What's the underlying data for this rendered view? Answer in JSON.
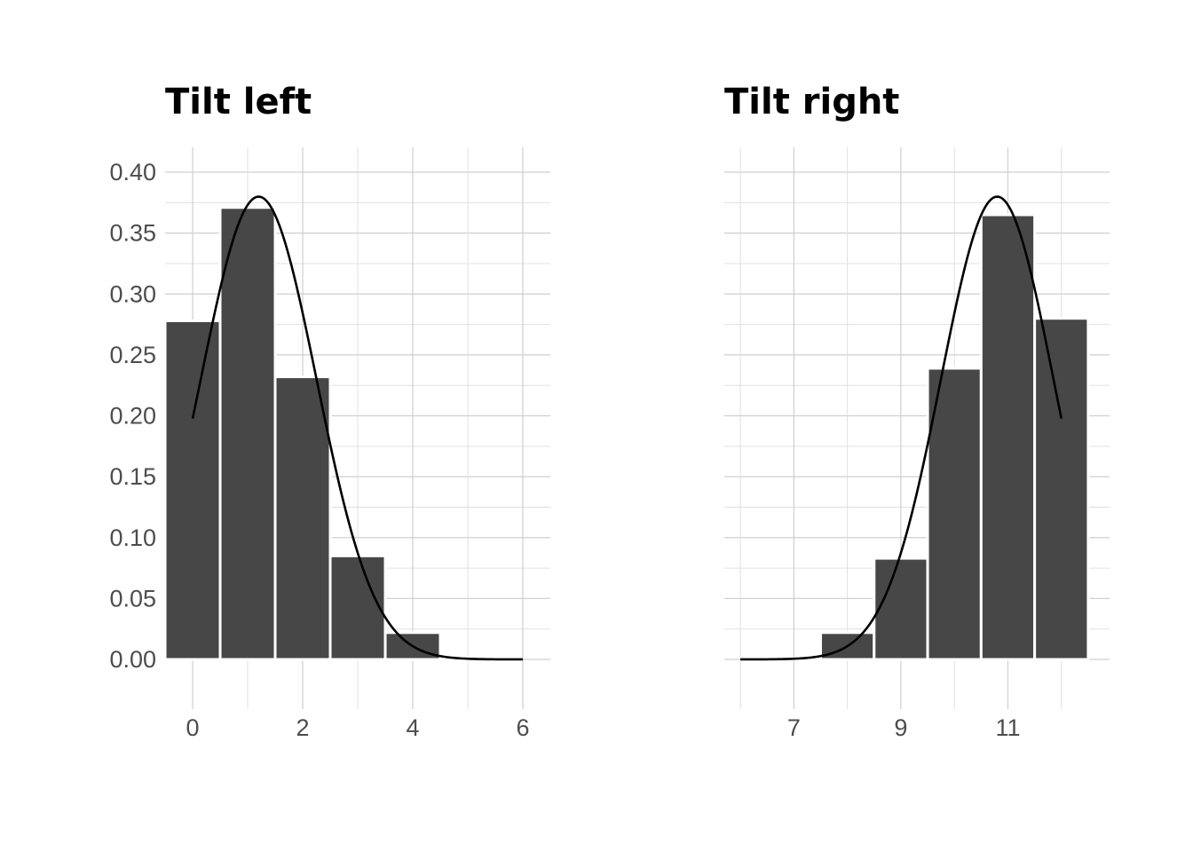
{
  "chart_data": [
    {
      "type": "bar",
      "title": "Tilt left",
      "xlabel": "",
      "ylabel": "",
      "grid": true,
      "xlim": [
        -0.5,
        6.5
      ],
      "ylim": [
        0,
        0.4
      ],
      "x_ticks": [
        0,
        2,
        4,
        6
      ],
      "x_tick_labels": [
        "0",
        "2",
        "4",
        "6"
      ],
      "y_ticks": [
        0,
        0.05,
        0.1,
        0.15,
        0.2,
        0.25,
        0.3,
        0.35,
        0.4
      ],
      "y_tick_labels": [
        "0.00",
        "0.05",
        "0.10",
        "0.15",
        "0.20",
        "0.25",
        "0.30",
        "0.35",
        "0.40"
      ],
      "bars": {
        "x": [
          0,
          1,
          2,
          3,
          4,
          5
        ],
        "values": [
          0.278,
          0.371,
          0.232,
          0.085,
          0.022,
          0.002
        ]
      },
      "curve": {
        "type": "normal_density",
        "mean": 1.2,
        "sd": 1.05,
        "x_range": [
          0,
          6
        ]
      }
    },
    {
      "type": "bar",
      "title": "Tilt right",
      "xlabel": "",
      "ylabel": "",
      "grid": true,
      "xlim": [
        5.7,
        12.9
      ],
      "ylim": [
        0,
        0.4
      ],
      "x_ticks": [
        7,
        9,
        11
      ],
      "x_tick_labels": [
        "7",
        "9",
        "11"
      ],
      "y_ticks": [
        0,
        0.05,
        0.1,
        0.15,
        0.2,
        0.25,
        0.3,
        0.35,
        0.4
      ],
      "y_tick_labels": [],
      "bars": {
        "x": [
          6,
          7,
          8,
          9,
          10,
          11,
          12
        ],
        "values": [
          0.0,
          0.001,
          0.022,
          0.083,
          0.239,
          0.365,
          0.28
        ]
      },
      "curve": {
        "type": "normal_density",
        "mean": 10.8,
        "sd": 1.05,
        "x_range": [
          6,
          12
        ]
      }
    }
  ]
}
